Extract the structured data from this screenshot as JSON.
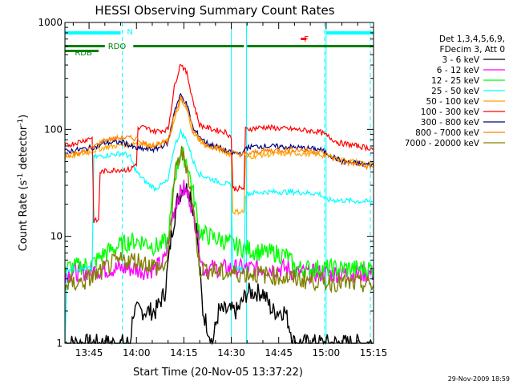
{
  "chart_data": {
    "type": "line",
    "title": "HESSI Observing Summary Count Rates",
    "xlabel": "Start Time (20-Nov-05 13:37:22)",
    "ylabel_prefix": "Count Rate (s",
    "ylabel_sup": "-1",
    "ylabel_suffix": " detector",
    "ylabel_end": ")",
    "ylog": true,
    "ylim": [
      1,
      1000
    ],
    "xlim_minutes": [
      37.37,
      135
    ],
    "x_ticks": [
      {
        "label": "13:45",
        "minute": 45
      },
      {
        "label": "14:00",
        "minute": 60
      },
      {
        "label": "14:15",
        "minute": 75
      },
      {
        "label": "14:30",
        "minute": 90
      },
      {
        "label": "14:45",
        "minute": 105
      },
      {
        "label": "15:00",
        "minute": 120
      },
      {
        "label": "15:15",
        "minute": 135
      }
    ],
    "y_ticks": [
      {
        "label": "1",
        "value": 1
      },
      {
        "label": "10",
        "value": 10
      },
      {
        "label": "100",
        "value": 100
      },
      {
        "label": "1000",
        "value": 1000
      }
    ],
    "legend_header": [
      "Det 1,3,4,5,6,9,",
      "FDecim 3, Att 0"
    ],
    "series": [
      {
        "name": "3 - 6 keV",
        "color": "#000000",
        "points": [
          [
            37.4,
            1
          ],
          [
            58,
            1
          ],
          [
            59,
            2
          ],
          [
            62,
            2
          ],
          [
            66,
            2
          ],
          [
            69,
            3
          ],
          [
            71,
            10
          ],
          [
            73,
            22
          ],
          [
            75,
            30
          ],
          [
            77,
            25
          ],
          [
            79,
            12
          ],
          [
            81,
            2
          ],
          [
            84,
            1
          ],
          [
            86,
            2
          ],
          [
            89,
            2
          ],
          [
            92,
            2
          ],
          [
            95,
            3
          ],
          [
            100,
            3
          ],
          [
            103,
            2
          ],
          [
            107,
            2
          ],
          [
            110,
            1
          ],
          [
            135,
            1
          ]
        ]
      },
      {
        "name": "6 - 12 keV",
        "color": "#ff00ff",
        "points": [
          [
            37.4,
            4.5
          ],
          [
            48,
            4.8
          ],
          [
            52,
            5
          ],
          [
            58,
            5
          ],
          [
            62,
            4.8
          ],
          [
            66,
            5
          ],
          [
            69,
            6
          ],
          [
            71,
            14
          ],
          [
            73,
            23
          ],
          [
            75,
            28
          ],
          [
            77,
            22
          ],
          [
            79,
            12
          ],
          [
            81,
            5
          ],
          [
            85,
            5
          ],
          [
            90,
            5
          ],
          [
            96,
            5
          ],
          [
            100,
            5
          ],
          [
            105,
            5
          ],
          [
            108,
            5
          ],
          [
            110,
            4.5
          ],
          [
            135,
            4.5
          ]
        ]
      },
      {
        "name": "12 - 25 keV",
        "color": "#00ff00",
        "points": [
          [
            37.4,
            5
          ],
          [
            46,
            5.5
          ],
          [
            50,
            7
          ],
          [
            54,
            8
          ],
          [
            58,
            9
          ],
          [
            62,
            9
          ],
          [
            66,
            8
          ],
          [
            70,
            9
          ],
          [
            72,
            35
          ],
          [
            74,
            60
          ],
          [
            76,
            50
          ],
          [
            78,
            25
          ],
          [
            80,
            11
          ],
          [
            83,
            10
          ],
          [
            88,
            9
          ],
          [
            92,
            8
          ],
          [
            96,
            7.5
          ],
          [
            100,
            7
          ],
          [
            104,
            7
          ],
          [
            108,
            6.5
          ],
          [
            110,
            5
          ],
          [
            135,
            5
          ]
        ]
      },
      {
        "name": "25 - 50 keV",
        "color": "#00ffff",
        "points": [
          [
            37.4,
            1
          ],
          [
            38,
            5
          ],
          [
            46,
            5
          ],
          [
            46.5,
            55
          ],
          [
            52,
            58
          ],
          [
            56,
            60
          ],
          [
            58,
            55
          ],
          [
            60,
            40
          ],
          [
            63,
            32
          ],
          [
            66,
            28
          ],
          [
            70,
            33
          ],
          [
            72,
            70
          ],
          [
            74,
            95
          ],
          [
            76,
            78
          ],
          [
            78,
            50
          ],
          [
            80,
            38
          ],
          [
            84,
            34
          ],
          [
            88,
            31
          ],
          [
            90,
            30
          ],
          [
            90.5,
            5
          ],
          [
            94,
            5
          ],
          [
            94.5,
            25
          ],
          [
            100,
            26
          ],
          [
            105,
            26
          ],
          [
            110,
            26
          ],
          [
            118,
            25
          ],
          [
            120,
            22
          ],
          [
            135,
            21
          ]
        ]
      },
      {
        "name": "50 - 100 keV",
        "color": "#ffa500",
        "points": [
          [
            37.4,
            55
          ],
          [
            44,
            60
          ],
          [
            50,
            68
          ],
          [
            56,
            72
          ],
          [
            60,
            75
          ],
          [
            65,
            70
          ],
          [
            70,
            78
          ],
          [
            74,
            185
          ],
          [
            76,
            150
          ],
          [
            78,
            90
          ],
          [
            82,
            70
          ],
          [
            86,
            65
          ],
          [
            90,
            58
          ],
          [
            90.5,
            17
          ],
          [
            94,
            17
          ],
          [
            94.5,
            55
          ],
          [
            100,
            58
          ],
          [
            110,
            60
          ],
          [
            118,
            58
          ],
          [
            125,
            52
          ],
          [
            135,
            47
          ]
        ]
      },
      {
        "name": "100 - 300 keV",
        "color": "#ff0000",
        "points": [
          [
            37.4,
            70
          ],
          [
            44,
            80
          ],
          [
            46,
            85
          ],
          [
            46.5,
            14
          ],
          [
            48,
            14
          ],
          [
            48.5,
            40
          ],
          [
            54,
            42
          ],
          [
            58,
            42
          ],
          [
            60,
            48
          ],
          [
            60.5,
            100
          ],
          [
            62,
            105
          ],
          [
            66,
            96
          ],
          [
            70,
            100
          ],
          [
            72,
            250
          ],
          [
            74,
            420
          ],
          [
            76,
            330
          ],
          [
            78,
            180
          ],
          [
            80,
            110
          ],
          [
            84,
            100
          ],
          [
            88,
            95
          ],
          [
            90,
            85
          ],
          [
            90.5,
            28
          ],
          [
            94,
            28
          ],
          [
            94.5,
            100
          ],
          [
            100,
            105
          ],
          [
            110,
            100
          ],
          [
            118,
            95
          ],
          [
            124,
            75
          ],
          [
            135,
            66
          ]
        ]
      },
      {
        "name": "300 - 800 keV",
        "color": "#000080",
        "points": [
          [
            37.4,
            62
          ],
          [
            44,
            66
          ],
          [
            48,
            70
          ],
          [
            50,
            75
          ],
          [
            56,
            76
          ],
          [
            58,
            70
          ],
          [
            60,
            66
          ],
          [
            66,
            65
          ],
          [
            70,
            75
          ],
          [
            72,
            150
          ],
          [
            74,
            210
          ],
          [
            76,
            170
          ],
          [
            78,
            100
          ],
          [
            82,
            75
          ],
          [
            86,
            68
          ],
          [
            90,
            60
          ],
          [
            94,
            60
          ],
          [
            94.5,
            68
          ],
          [
            100,
            70
          ],
          [
            110,
            68
          ],
          [
            118,
            65
          ],
          [
            125,
            50
          ],
          [
            135,
            46
          ]
        ]
      },
      {
        "name": "800 - 7000 keV",
        "color": "#ff8000",
        "points": [
          [
            37.4,
            58
          ],
          [
            44,
            62
          ],
          [
            50,
            80
          ],
          [
            56,
            84
          ],
          [
            60,
            82
          ],
          [
            64,
            70
          ],
          [
            70,
            76
          ],
          [
            72,
            140
          ],
          [
            74,
            200
          ],
          [
            76,
            160
          ],
          [
            78,
            95
          ],
          [
            82,
            72
          ],
          [
            86,
            67
          ],
          [
            90,
            60
          ],
          [
            94,
            58
          ],
          [
            100,
            63
          ],
          [
            110,
            65
          ],
          [
            118,
            62
          ],
          [
            125,
            50
          ],
          [
            135,
            44
          ]
        ]
      },
      {
        "name": "7000 - 20000 keV",
        "color": "#808000",
        "points": [
          [
            37.4,
            3.5
          ],
          [
            44,
            3.8
          ],
          [
            48,
            4.5
          ],
          [
            52,
            5.5
          ],
          [
            56,
            6
          ],
          [
            60,
            6
          ],
          [
            64,
            5.5
          ],
          [
            68,
            5
          ],
          [
            70,
            6
          ],
          [
            72,
            35
          ],
          [
            74,
            62
          ],
          [
            76,
            45
          ],
          [
            78,
            18
          ],
          [
            80,
            5
          ],
          [
            84,
            4.8
          ],
          [
            88,
            4.5
          ],
          [
            92,
            4.5
          ],
          [
            96,
            4.5
          ],
          [
            100,
            4.4
          ],
          [
            105,
            4.2
          ],
          [
            110,
            4
          ],
          [
            118,
            3.8
          ],
          [
            135,
            3.5
          ]
        ]
      }
    ],
    "flags": {
      "bars": [
        {
          "color": "#00ffff",
          "level": "top",
          "start_minute": 37.4,
          "end_minute": 55
        },
        {
          "color": "#00ffff",
          "level": "top",
          "start_minute": 120,
          "end_minute": 135
        }
      ],
      "labels": [
        {
          "text": "N",
          "color": "#00ffff",
          "minute": 57
        },
        {
          "text": "RDO",
          "color": "#008000",
          "minute": 51
        },
        {
          "text": "RDB",
          "color": "#008000",
          "minute": 40.5
        },
        {
          "text": "F",
          "color": "#ff0000",
          "minute": 113
        }
      ],
      "green_bar_segments": [
        [
          37.4,
          50
        ],
        [
          59,
          90
        ],
        [
          90,
          94
        ],
        [
          95,
          135
        ]
      ],
      "rdb_segment": [
        37.4,
        48
      ],
      "rdo_segment": [
        48,
        59
      ]
    },
    "saa_lines_minutes": [
      37.4,
      90,
      94.8,
      120
    ],
    "dashed_lines_minutes": [
      55.5,
      119.5,
      134
    ]
  },
  "timestamp": "29-Nov-2009 18:59"
}
